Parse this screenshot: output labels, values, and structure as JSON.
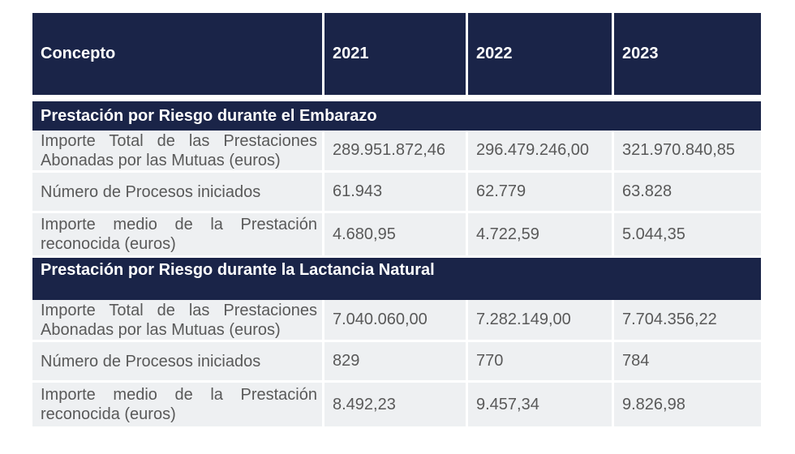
{
  "header": {
    "concept": "Concepto",
    "years": [
      "2021",
      "2022",
      "2023"
    ]
  },
  "sections": [
    {
      "title": "Prestación por Riesgo durante el Embarazo",
      "rows": [
        {
          "label": "Importe Total de las Prestaciones Abonadas por las Mutuas (euros)",
          "values": [
            "289.951.872,46",
            "296.479.246,00",
            "321.970.840,85"
          ]
        },
        {
          "label": "Número de Procesos iniciados",
          "values": [
            "61.943",
            "62.779",
            "63.828"
          ]
        },
        {
          "label": "Importe medio de la Prestación reconocida (euros)",
          "values": [
            "4.680,95",
            "4.722,59",
            "5.044,35"
          ]
        }
      ]
    },
    {
      "title": "Prestación por Riesgo durante la Lactancia Natural",
      "rows": [
        {
          "label": "Importe Total de las Prestaciones Abonadas por las Mutuas (euros)",
          "values": [
            "7.040.060,00",
            "7.282.149,00",
            "7.704.356,22"
          ]
        },
        {
          "label": "Número de Procesos iniciados",
          "values": [
            "829",
            "770",
            "784"
          ]
        },
        {
          "label": "Importe medio de la Prestación reconocida (euros)",
          "values": [
            "8.492,23",
            "9.457,34",
            "9.826,98"
          ]
        }
      ]
    }
  ],
  "colors": {
    "header_bg": "#1a2448",
    "row_bg": "#eef0f2",
    "row_text": "#595959"
  }
}
